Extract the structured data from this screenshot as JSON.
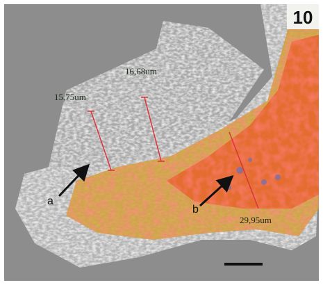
{
  "panel_label": "10",
  "measurements": [
    "15,75um",
    "16,68um",
    "29,95um"
  ],
  "markers": [
    "a",
    "b"
  ]
}
